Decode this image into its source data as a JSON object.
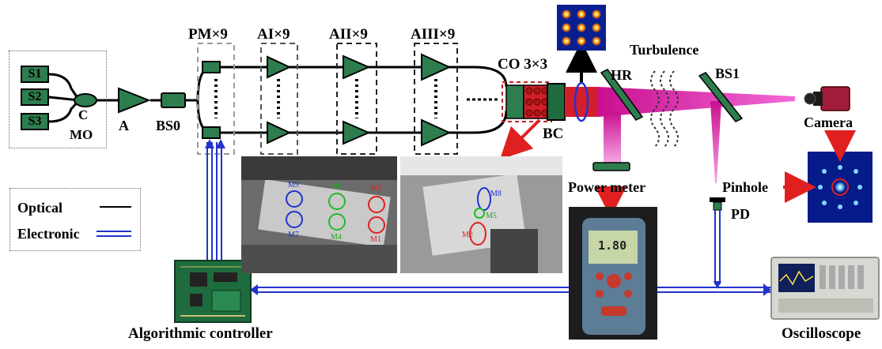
{
  "sources": [
    "S1",
    "S2",
    "S3"
  ],
  "labels": {
    "combiner": "C",
    "mo": "MO",
    "amp": "A",
    "bs0": "BS0",
    "pm": "PM×9",
    "a1": "AI×9",
    "a2": "AII×9",
    "a3": "AIII×9",
    "co": "CO 3×3",
    "bc": "BC",
    "hr": "HR",
    "turbulence": "Turbulence",
    "bs1": "BS1",
    "camera": "Camera",
    "power_meter": "Power meter",
    "pinhole": "Pinhole",
    "pd": "PD",
    "controller": "Algorithmic controller",
    "oscilloscope": "Oscilloscope"
  },
  "legend": {
    "optical": "Optical",
    "electronic": "Electronic"
  },
  "mirror_labels": {
    "left": [
      "M9",
      "M6",
      "M3",
      "M7",
      "M4",
      "M1"
    ],
    "right": [
      "M8",
      "M5",
      "M2"
    ]
  },
  "device_display": "1.80",
  "colors": {
    "component_green": "#2e7d4f",
    "laser_beam": "#d4169f",
    "hot_red": "#d31f2b",
    "wire_blue": "#2233cc",
    "arrow_red": "#e02020"
  }
}
